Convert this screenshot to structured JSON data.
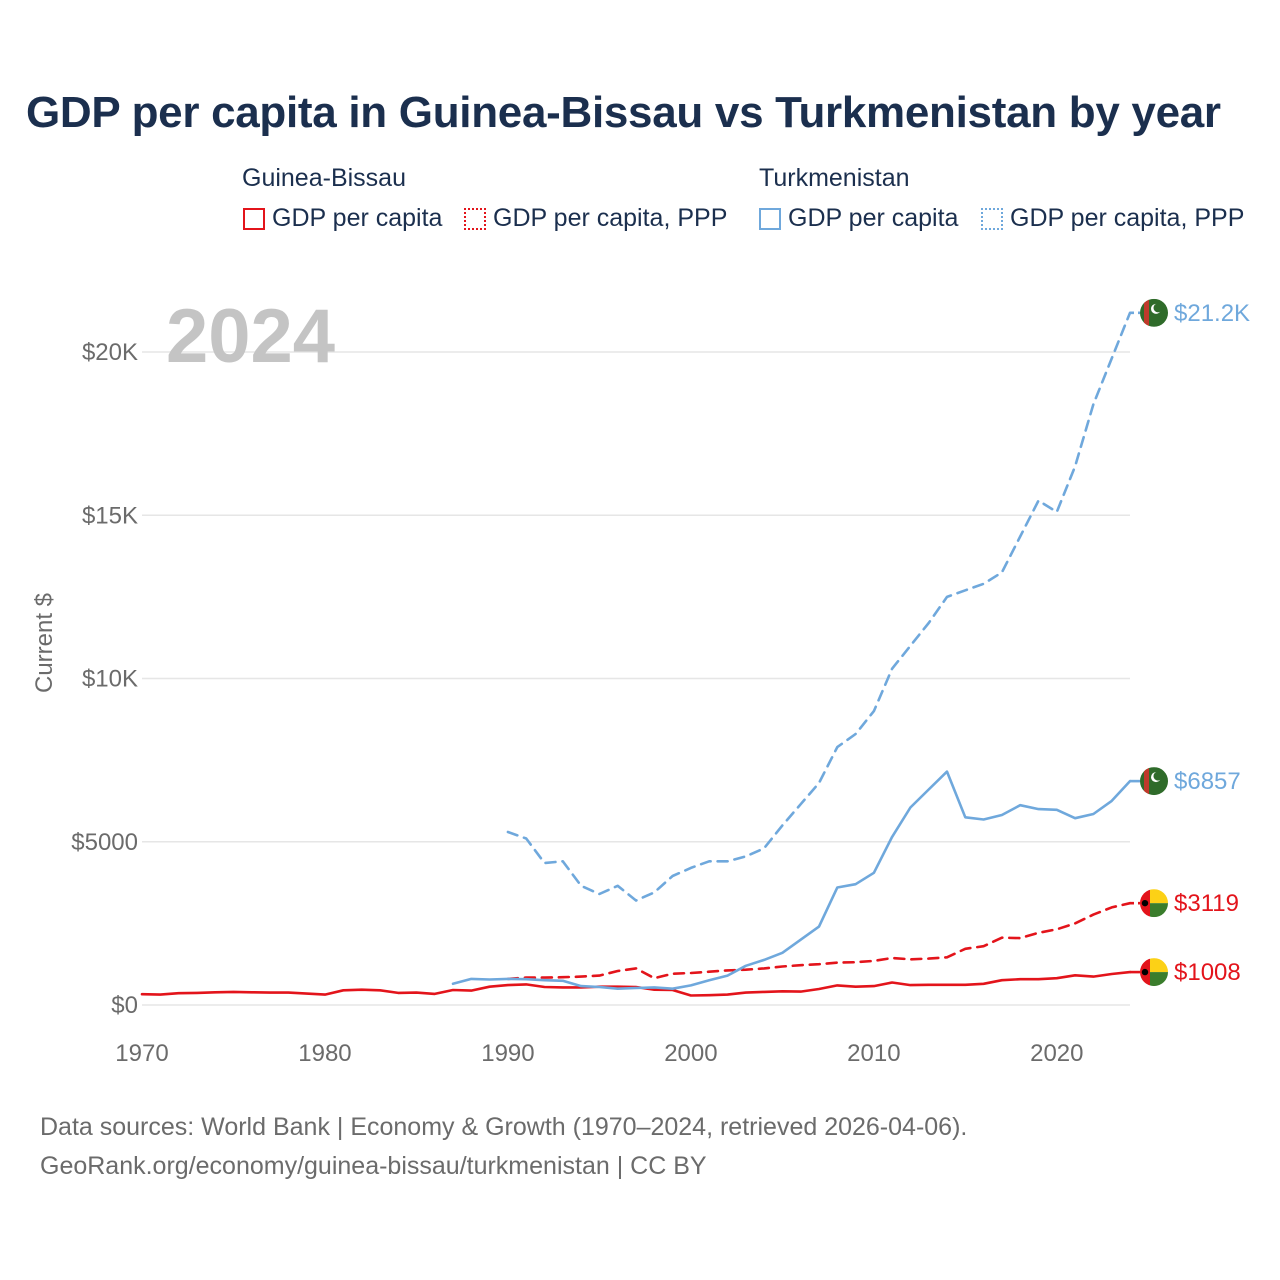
{
  "title": "GDP per capita in Guinea-Bissau vs Turkmenistan by year",
  "legend": {
    "groups": [
      {
        "name": "Guinea-Bissau",
        "items": [
          "GDP per capita",
          "GDP per capita, PPP"
        ]
      },
      {
        "name": "Turkmenistan",
        "items": [
          "GDP per capita",
          "GDP per capita, PPP"
        ]
      }
    ]
  },
  "source": {
    "line1": "Data sources: World Bank | Economy & Growth (1970–2024, retrieved 2026-04-06).",
    "line2": "GeoRank.org/economy/guinea-bissau/turkmenistan | CC BY"
  },
  "colors": {
    "guinea_bissau": "#e3141b",
    "turkmenistan": "#6fa8dc",
    "text": "#1b2f4e",
    "year_watermark": "#c4c4c4"
  },
  "icons": {
    "guinea_bissau": "guinea-bissau-flag-icon",
    "turkmenistan": "turkmenistan-flag-icon"
  },
  "chart_data": {
    "type": "line",
    "year_label": "2024",
    "ylabel": "Current $",
    "xlim": [
      1970,
      2024
    ],
    "ylim": [
      0,
      22000
    ],
    "xticks": [
      1970,
      1980,
      1990,
      2000,
      2010,
      2020
    ],
    "xtick_labels": [
      "1970",
      "1980",
      "1990",
      "2000",
      "2010",
      "2020"
    ],
    "yticks": [
      0,
      5000,
      10000,
      15000,
      20000
    ],
    "ytick_labels": [
      "$0",
      "$5000",
      "$10K",
      "$15K",
      "$20K"
    ],
    "grid": true,
    "series": [
      {
        "name": "Guinea-Bissau GDP per capita",
        "country": "guinea_bissau",
        "style": "solid",
        "end_label": "$1008",
        "x": [
          1970,
          1971,
          1972,
          1973,
          1974,
          1975,
          1976,
          1977,
          1978,
          1979,
          1980,
          1981,
          1982,
          1983,
          1984,
          1985,
          1986,
          1987,
          1988,
          1989,
          1990,
          1991,
          1992,
          1993,
          1994,
          1995,
          1996,
          1997,
          1998,
          1999,
          2000,
          2001,
          2002,
          2003,
          2004,
          2005,
          2006,
          2007,
          2008,
          2009,
          2010,
          2011,
          2012,
          2013,
          2014,
          2015,
          2016,
          2017,
          2018,
          2019,
          2020,
          2021,
          2022,
          2023,
          2024
        ],
        "values": [
          330,
          320,
          360,
          370,
          390,
          400,
          390,
          380,
          380,
          350,
          320,
          450,
          470,
          450,
          370,
          380,
          340,
          460,
          440,
          560,
          610,
          630,
          550,
          540,
          540,
          560,
          560,
          550,
          470,
          460,
          290,
          300,
          320,
          380,
          400,
          420,
          410,
          490,
          600,
          560,
          580,
          690,
          610,
          620,
          620,
          620,
          650,
          760,
          790,
          790,
          820,
          910,
          870,
          950,
          1008
        ]
      },
      {
        "name": "Guinea-Bissau GDP per capita, PPP",
        "country": "guinea_bissau",
        "style": "dashed",
        "end_label": "$3119",
        "x": [
          1990,
          1991,
          1992,
          1993,
          1994,
          1995,
          1996,
          1997,
          1998,
          1999,
          2000,
          2001,
          2002,
          2003,
          2004,
          2005,
          2006,
          2007,
          2008,
          2009,
          2010,
          2011,
          2012,
          2013,
          2014,
          2015,
          2016,
          2017,
          2018,
          2019,
          2020,
          2021,
          2022,
          2023,
          2024
        ],
        "values": [
          800,
          840,
          840,
          850,
          870,
          900,
          1040,
          1120,
          820,
          960,
          980,
          1020,
          1060,
          1080,
          1120,
          1180,
          1220,
          1250,
          1300,
          1310,
          1350,
          1440,
          1400,
          1420,
          1460,
          1720,
          1800,
          2060,
          2050,
          2210,
          2320,
          2500,
          2770,
          2990,
          3119
        ]
      },
      {
        "name": "Turkmenistan GDP per capita",
        "country": "turkmenistan",
        "style": "solid",
        "end_label": "$6857",
        "x": [
          1987,
          1988,
          1989,
          1990,
          1991,
          1992,
          1993,
          1994,
          1995,
          1996,
          1997,
          1998,
          1999,
          2000,
          2001,
          2002,
          2003,
          2004,
          2005,
          2006,
          2007,
          2008,
          2009,
          2010,
          2011,
          2012,
          2013,
          2014,
          2015,
          2016,
          2017,
          2018,
          2019,
          2020,
          2021,
          2022,
          2023,
          2024
        ],
        "values": [
          650,
          800,
          780,
          800,
          790,
          760,
          740,
          580,
          550,
          500,
          520,
          540,
          500,
          600,
          760,
          900,
          1200,
          1380,
          1600,
          2000,
          2400,
          3600,
          3700,
          4050,
          5150,
          6050,
          6600,
          7150,
          5750,
          5680,
          5820,
          6120,
          6000,
          5980,
          5720,
          5850,
          6250,
          6857
        ]
      },
      {
        "name": "Turkmenistan GDP per capita, PPP",
        "country": "turkmenistan",
        "style": "dashed",
        "end_label": "$21.2K",
        "x": [
          1990,
          1991,
          1992,
          1993,
          1994,
          1995,
          1996,
          1997,
          1998,
          1999,
          2000,
          2001,
          2002,
          2003,
          2004,
          2005,
          2006,
          2007,
          2008,
          2009,
          2010,
          2011,
          2012,
          2013,
          2014,
          2015,
          2016,
          2017,
          2018,
          2019,
          2020,
          2021,
          2022,
          2023,
          2024
        ],
        "values": [
          5300,
          5100,
          4350,
          4400,
          3650,
          3400,
          3650,
          3200,
          3450,
          3950,
          4200,
          4400,
          4400,
          4550,
          4800,
          5500,
          6150,
          6800,
          7900,
          8300,
          9000,
          10300,
          11000,
          11700,
          12500,
          12700,
          12900,
          13250,
          14350,
          15450,
          15100,
          16500,
          18400,
          19800,
          21200
        ]
      }
    ]
  }
}
